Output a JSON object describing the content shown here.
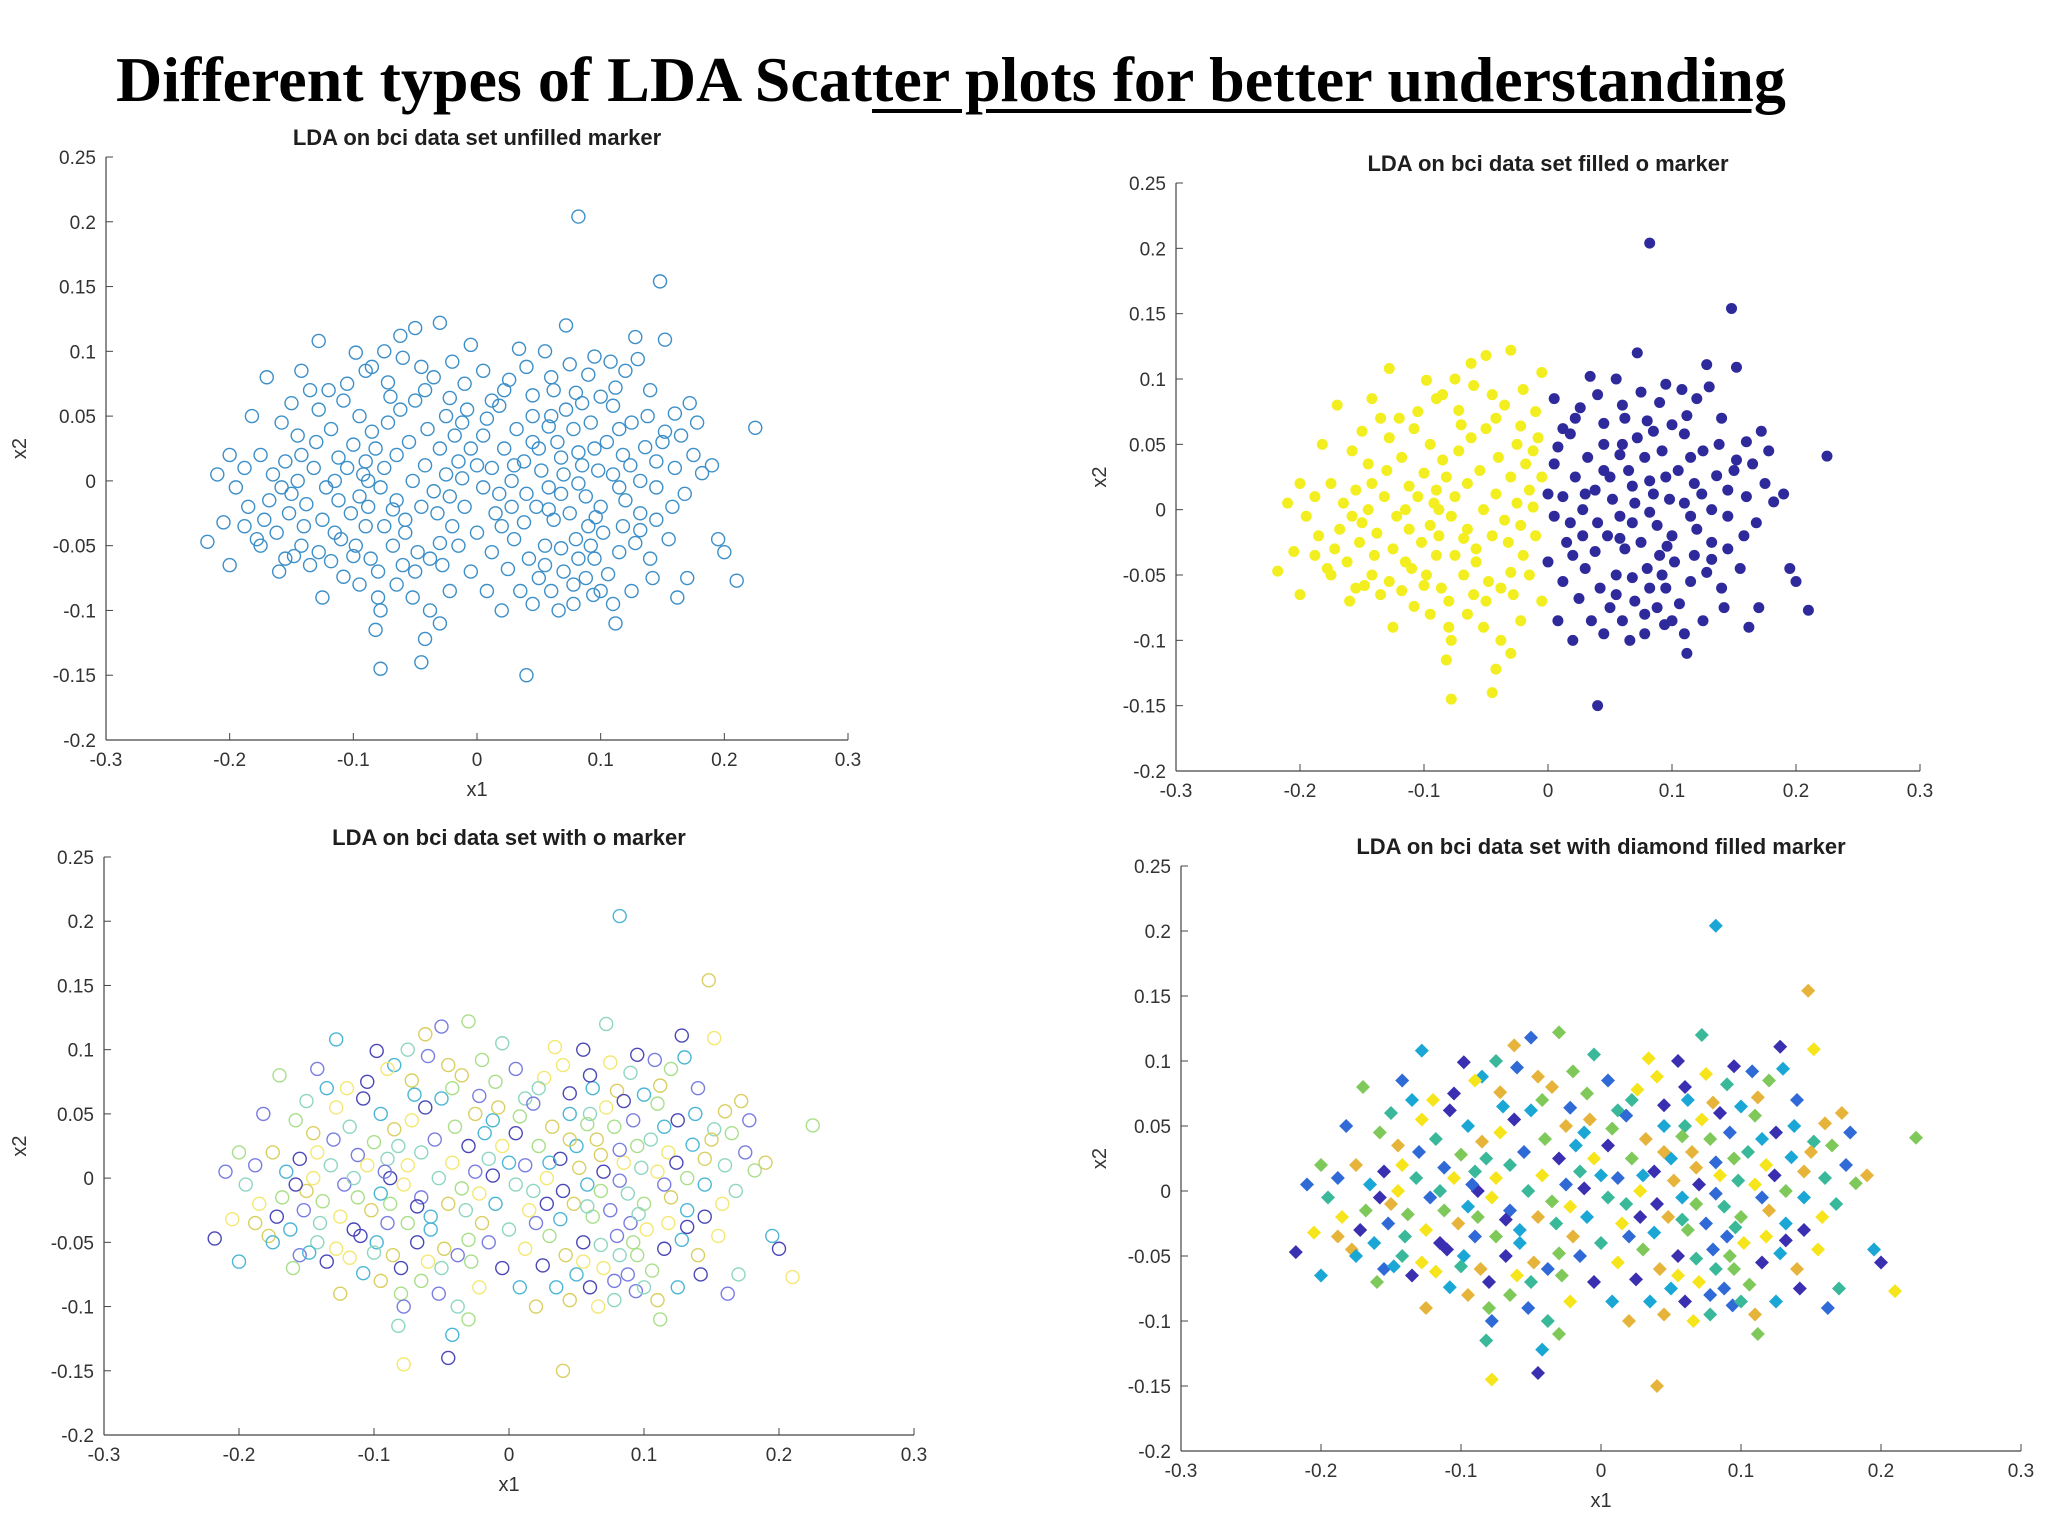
{
  "page_title": {
    "plain": "Different types of  LDA Scat",
    "underlined": "ter plots for better understanding"
  },
  "chart_data": [
    {
      "type": "scatter",
      "marker": "o",
      "fill": "none",
      "title": "LDA on bci data set unfilled marker",
      "xlabel": "x1",
      "ylabel": "x2",
      "xlim": [
        -0.3,
        0.3
      ],
      "ylim": [
        -0.2,
        0.25
      ],
      "x_ticks": [
        "-0.3",
        "-0.2",
        "-0.1",
        "0",
        "0.1",
        "0.2",
        "0.3"
      ],
      "y_ticks": [
        "-0.2",
        "-0.15",
        "-0.1",
        "-0.05",
        "0",
        "0.05",
        "0.1",
        "0.15",
        "0.2",
        "0.25"
      ],
      "grid": false,
      "colors": [
        "#3c8fc8"
      ]
    },
    {
      "type": "scatter",
      "marker": "o",
      "fill": "filled",
      "title": "LDA on bci data set filled o marker",
      "xlabel": "",
      "ylabel": "x2",
      "xlim": [
        -0.3,
        0.3
      ],
      "ylim": [
        -0.2,
        0.25
      ],
      "x_ticks": [
        "-0.3",
        "-0.2",
        "-0.1",
        "0",
        "0.1",
        "0.2",
        "0.3"
      ],
      "y_ticks": [
        "-0.2",
        "-0.15",
        "-0.1",
        "-0.05",
        "0",
        "0.05",
        "0.1",
        "0.15",
        "0.2",
        "0.25"
      ],
      "grid": false,
      "colors": [
        "#f2ee1f",
        "#2e2a9c"
      ],
      "color_split_x": 0.0
    },
    {
      "type": "scatter",
      "marker": "o",
      "fill": "none",
      "title": "LDA on bci data set with o marker",
      "xlabel": "x1",
      "ylabel": "x2",
      "xlim": [
        -0.3,
        0.3
      ],
      "ylim": [
        -0.2,
        0.25
      ],
      "x_ticks": [
        "-0.3",
        "-0.2",
        "-0.1",
        "0",
        "0.1",
        "0.2",
        "0.3"
      ],
      "y_ticks": [
        "-0.2",
        "-0.15",
        "-0.1",
        "-0.05",
        "0",
        "0.05",
        "0.1",
        "0.15",
        "0.2",
        "0.25"
      ],
      "grid": false,
      "colors": [
        "#f3e873",
        "#d9cf62",
        "#8fd6c2",
        "#4cb6d4",
        "#7a7de0",
        "#4a47b8",
        "#a9df8a"
      ]
    },
    {
      "type": "scatter",
      "marker": "diamond",
      "fill": "filled",
      "title": "LDA on bci data set with diamond filled marker",
      "xlabel": "x1",
      "ylabel": "x2",
      "xlim": [
        -0.3,
        0.3
      ],
      "ylim": [
        -0.2,
        0.25
      ],
      "x_ticks": [
        "-0.3",
        "-0.2",
        "-0.1",
        "0",
        "0.1",
        "0.2",
        "0.3"
      ],
      "y_ticks": [
        "-0.2",
        "-0.15",
        "-0.1",
        "-0.05",
        "0",
        "0.05",
        "0.1",
        "0.15",
        "0.2",
        "0.25"
      ],
      "grid": false,
      "colors": [
        "#f5e51a",
        "#e6b43a",
        "#3ab89a",
        "#1aa7d6",
        "#2f6ad6",
        "#3a2fb0",
        "#7fc85a"
      ]
    }
  ],
  "points": [
    [
      0.082,
      0.204
    ],
    [
      0.148,
      0.154
    ],
    [
      -0.03,
      0.122
    ],
    [
      -0.05,
      0.118
    ],
    [
      0.072,
      0.12
    ],
    [
      0.152,
      0.109
    ],
    [
      0.128,
      0.111
    ],
    [
      -0.128,
      0.108
    ],
    [
      -0.062,
      0.112
    ],
    [
      -0.17,
      0.08
    ],
    [
      -0.142,
      0.085
    ],
    [
      -0.005,
      0.105
    ],
    [
      0.034,
      0.102
    ],
    [
      0.095,
      0.096
    ],
    [
      0.13,
      0.094
    ],
    [
      0.172,
      0.06
    ],
    [
      0.225,
      0.041
    ],
    [
      -0.182,
      0.05
    ],
    [
      -0.15,
      0.06
    ],
    [
      -0.12,
      0.07
    ],
    [
      -0.098,
      0.099
    ],
    [
      -0.085,
      0.088
    ],
    [
      -0.072,
      0.076
    ],
    [
      -0.042,
      0.07
    ],
    [
      -0.022,
      0.064
    ],
    [
      0.012,
      0.062
    ],
    [
      0.026,
      0.078
    ],
    [
      0.045,
      0.066
    ],
    [
      0.062,
      0.07
    ],
    [
      0.08,
      0.068
    ],
    [
      0.11,
      0.058
    ],
    [
      0.14,
      0.07
    ],
    [
      0.152,
      0.038
    ],
    [
      -0.205,
      -0.032
    ],
    [
      -0.218,
      -0.047
    ],
    [
      -0.2,
      -0.065
    ],
    [
      -0.178,
      -0.045
    ],
    [
      -0.16,
      -0.07
    ],
    [
      -0.155,
      -0.06
    ],
    [
      -0.142,
      -0.05
    ],
    [
      -0.128,
      -0.055
    ],
    [
      -0.115,
      -0.04
    ],
    [
      -0.108,
      -0.074
    ],
    [
      -0.095,
      -0.08
    ],
    [
      -0.08,
      -0.09
    ],
    [
      -0.078,
      -0.1
    ],
    [
      -0.082,
      -0.115
    ],
    [
      -0.078,
      -0.145
    ],
    [
      -0.045,
      -0.14
    ],
    [
      -0.042,
      -0.122
    ],
    [
      0.04,
      -0.15
    ],
    [
      0.112,
      -0.11
    ],
    [
      0.162,
      -0.09
    ],
    [
      0.17,
      -0.075
    ],
    [
      0.21,
      -0.077
    ],
    [
      0.2,
      -0.055
    ],
    [
      0.195,
      -0.045
    ],
    [
      0.19,
      0.012
    ],
    [
      0.182,
      0.006
    ],
    [
      0.175,
      0.02
    ],
    [
      0.16,
      0.01
    ],
    [
      0.158,
      -0.02
    ],
    [
      0.145,
      -0.03
    ],
    [
      0.132,
      -0.025
    ],
    [
      0.12,
      -0.015
    ],
    [
      0.1,
      -0.02
    ],
    [
      0.09,
      -0.035
    ],
    [
      0.082,
      -0.06
    ],
    [
      0.07,
      -0.07
    ],
    [
      0.06,
      -0.085
    ],
    [
      0.05,
      -0.075
    ],
    [
      0.042,
      -0.06
    ],
    [
      0.03,
      -0.045
    ],
    [
      0.02,
      -0.035
    ],
    [
      0.018,
      -0.01
    ],
    [
      0.028,
      0.0
    ],
    [
      0.038,
      0.015
    ],
    [
      0.05,
      0.025
    ],
    [
      0.065,
      0.03
    ],
    [
      0.078,
      0.04
    ],
    [
      0.092,
      0.045
    ],
    [
      0.105,
      0.03
    ],
    [
      0.118,
      0.02
    ],
    [
      0.125,
      0.045
    ],
    [
      0.138,
      0.05
    ],
    [
      0.145,
      0.015
    ],
    [
      0.132,
      0.0
    ],
    [
      0.115,
      -0.005
    ],
    [
      0.098,
      0.008
    ],
    [
      0.085,
      0.012
    ],
    [
      0.07,
      0.005
    ],
    [
      0.058,
      -0.005
    ],
    [
      0.048,
      -0.02
    ],
    [
      0.062,
      -0.03
    ],
    [
      0.075,
      -0.025
    ],
    [
      0.088,
      -0.012
    ],
    [
      0.102,
      -0.04
    ],
    [
      0.115,
      -0.055
    ],
    [
      0.128,
      -0.048
    ],
    [
      0.14,
      -0.06
    ],
    [
      0.106,
      -0.072
    ],
    [
      0.094,
      -0.088
    ],
    [
      0.078,
      -0.095
    ],
    [
      0.066,
      -0.1
    ],
    [
      0.055,
      -0.05
    ],
    [
      -0.01,
      -0.02
    ],
    [
      -0.02,
      -0.035
    ],
    [
      -0.03,
      -0.048
    ],
    [
      -0.038,
      -0.06
    ],
    [
      -0.05,
      -0.07
    ],
    [
      -0.06,
      -0.065
    ],
    [
      -0.068,
      -0.05
    ],
    [
      -0.058,
      -0.03
    ],
    [
      -0.045,
      -0.02
    ],
    [
      -0.035,
      -0.008
    ],
    [
      -0.025,
      0.005
    ],
    [
      -0.015,
      0.015
    ],
    [
      -0.005,
      0.025
    ],
    [
      0.005,
      0.035
    ],
    [
      -0.012,
      0.045
    ],
    [
      -0.025,
      0.05
    ],
    [
      -0.04,
      0.04
    ],
    [
      -0.055,
      0.03
    ],
    [
      -0.065,
      0.02
    ],
    [
      -0.075,
      0.01
    ],
    [
      -0.088,
      0.0
    ],
    [
      -0.095,
      -0.012
    ],
    [
      -0.102,
      -0.025
    ],
    [
      -0.112,
      -0.015
    ],
    [
      -0.122,
      -0.005
    ],
    [
      -0.132,
      0.01
    ],
    [
      -0.142,
      0.02
    ],
    [
      -0.155,
      0.015
    ],
    [
      -0.165,
      0.005
    ],
    [
      -0.175,
      0.02
    ],
    [
      -0.168,
      -0.015
    ],
    [
      -0.152,
      -0.025
    ],
    [
      -0.14,
      -0.035
    ],
    [
      -0.125,
      -0.03
    ],
    [
      -0.11,
      -0.045
    ],
    [
      -0.098,
      -0.05
    ],
    [
      -0.086,
      -0.06
    ],
    [
      -0.075,
      -0.035
    ],
    [
      -0.065,
      -0.015
    ],
    [
      -0.052,
      0.0
    ],
    [
      -0.042,
      0.012
    ],
    [
      -0.03,
      0.025
    ],
    [
      -0.018,
      0.035
    ],
    [
      -0.008,
      0.055
    ],
    [
      0.008,
      0.048
    ],
    [
      0.018,
      0.058
    ],
    [
      -0.118,
      0.04
    ],
    [
      -0.128,
      0.055
    ],
    [
      -0.108,
      0.062
    ],
    [
      -0.095,
      0.05
    ],
    [
      -0.085,
      0.038
    ],
    [
      -0.1,
      0.028
    ],
    [
      -0.112,
      0.018
    ],
    [
      -0.09,
      0.015
    ],
    [
      -0.078,
      -0.005
    ],
    [
      -0.068,
      -0.022
    ],
    [
      -0.058,
      -0.04
    ],
    [
      -0.048,
      -0.055
    ],
    [
      -0.028,
      -0.065
    ],
    [
      -0.015,
      -0.05
    ],
    [
      0.0,
      -0.04
    ],
    [
      0.012,
      -0.055
    ],
    [
      0.025,
      -0.068
    ],
    [
      0.035,
      -0.085
    ],
    [
      0.045,
      -0.095
    ],
    [
      -0.088,
      -0.02
    ],
    [
      -0.092,
      0.005
    ],
    [
      -0.082,
      0.025
    ],
    [
      -0.072,
      0.045
    ],
    [
      -0.062,
      0.055
    ],
    [
      -0.05,
      0.062
    ],
    [
      -0.035,
      0.08
    ],
    [
      -0.02,
      0.092
    ],
    [
      -0.06,
      0.095
    ],
    [
      -0.075,
      0.1
    ],
    [
      -0.09,
      0.085
    ],
    [
      -0.105,
      0.075
    ],
    [
      -0.135,
      0.07
    ],
    [
      -0.145,
      0.035
    ],
    [
      -0.158,
      0.045
    ],
    [
      -0.188,
      0.01
    ],
    [
      -0.195,
      -0.005
    ],
    [
      -0.185,
      -0.02
    ],
    [
      -0.172,
      -0.03
    ],
    [
      -0.162,
      -0.04
    ],
    [
      -0.15,
      -0.01
    ],
    [
      -0.138,
      -0.018
    ],
    [
      -0.13,
      0.03
    ],
    [
      0.06,
      0.05
    ],
    [
      0.072,
      0.055
    ],
    [
      0.085,
      0.06
    ],
    [
      0.1,
      0.065
    ],
    [
      0.112,
      0.072
    ],
    [
      0.12,
      0.085
    ],
    [
      0.108,
      0.092
    ],
    [
      0.09,
      0.082
    ],
    [
      0.075,
      0.09
    ],
    [
      0.06,
      0.08
    ],
    [
      0.045,
      0.05
    ],
    [
      0.032,
      0.04
    ],
    [
      0.022,
      0.025
    ],
    [
      0.012,
      0.01
    ],
    [
      0.005,
      -0.005
    ],
    [
      0.015,
      -0.025
    ],
    [
      0.028,
      -0.02
    ],
    [
      0.038,
      -0.032
    ],
    [
      0.052,
      0.008
    ],
    [
      0.068,
      -0.01
    ],
    [
      0.082,
      -0.002
    ],
    [
      0.096,
      -0.028
    ],
    [
      0.11,
      0.005
    ],
    [
      0.124,
      0.012
    ],
    [
      0.136,
      0.026
    ],
    [
      0.15,
      0.03
    ],
    [
      0.165,
      0.035
    ],
    [
      0.178,
      0.045
    ],
    [
      0.168,
      -0.01
    ],
    [
      0.155,
      -0.045
    ],
    [
      0.142,
      -0.075
    ],
    [
      0.125,
      -0.085
    ],
    [
      0.11,
      -0.095
    ],
    [
      0.095,
      -0.06
    ],
    [
      0.08,
      -0.045
    ],
    [
      0.068,
      -0.052
    ],
    [
      0.055,
      -0.065
    ],
    [
      0.04,
      -0.01
    ],
    [
      0.03,
      0.012
    ],
    [
      0.045,
      0.03
    ],
    [
      0.058,
      0.042
    ],
    [
      -0.09,
      -0.035
    ],
    [
      -0.1,
      -0.058
    ],
    [
      -0.118,
      -0.062
    ],
    [
      -0.135,
      -0.065
    ],
    [
      -0.148,
      -0.058
    ],
    [
      -0.125,
      -0.09
    ],
    [
      -0.065,
      -0.08
    ],
    [
      -0.052,
      -0.09
    ],
    [
      -0.038,
      -0.1
    ],
    [
      -0.022,
      -0.085
    ],
    [
      -0.005,
      -0.07
    ],
    [
      0.008,
      -0.085
    ],
    [
      0.02,
      -0.1
    ],
    [
      -0.03,
      -0.11
    ],
    [
      0.088,
      -0.075
    ],
    [
      0.1,
      -0.085
    ],
    [
      0.118,
      -0.035
    ],
    [
      0.132,
      -0.038
    ],
    [
      0.145,
      -0.005
    ],
    [
      0.16,
      0.052
    ],
    [
      0.095,
      0.025
    ],
    [
      0.082,
      0.022
    ],
    [
      -0.115,
      0.0
    ],
    [
      -0.105,
      0.01
    ],
    [
      -0.08,
      -0.07
    ],
    [
      -0.07,
      0.065
    ],
    [
      -0.045,
      0.088
    ],
    [
      -0.01,
      0.075
    ],
    [
      0.005,
      0.085
    ],
    [
      0.022,
      0.07
    ],
    [
      0.04,
      0.088
    ],
    [
      0.055,
      0.1
    ],
    [
      0.115,
      0.04
    ],
    [
      0.068,
      0.018
    ],
    [
      0.092,
      -0.05
    ],
    [
      0.078,
      -0.08
    ],
    [
      0.058,
      -0.022
    ],
    [
      -0.145,
      0.0
    ],
    [
      -0.158,
      -0.005
    ],
    [
      -0.175,
      -0.05
    ],
    [
      -0.188,
      -0.035
    ],
    [
      -0.2,
      0.02
    ],
    [
      -0.21,
      0.005
    ],
    [
      -0.032,
      -0.025
    ],
    [
      -0.022,
      -0.012
    ],
    [
      -0.012,
      0.002
    ],
    [
      0.0,
      0.012
    ]
  ]
}
